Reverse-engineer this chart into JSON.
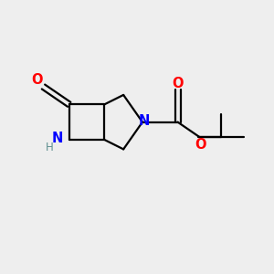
{
  "bg_color": "#eeeeee",
  "bond_color": "#000000",
  "N_color": "#0000ff",
  "O_color": "#ff0000",
  "H_color": "#5f9090",
  "line_width": 1.6,
  "figsize": [
    3.0,
    3.0
  ],
  "dpi": 100,
  "xlim": [
    0,
    10
  ],
  "ylim": [
    0,
    10
  ]
}
